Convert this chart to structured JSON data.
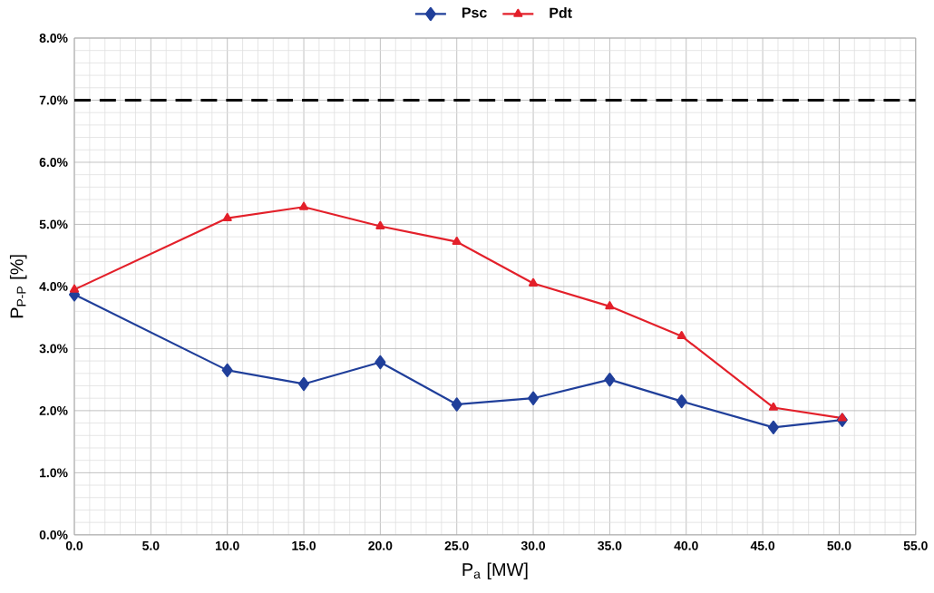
{
  "chart_data": {
    "type": "line",
    "xlabel": "P$_{a}$ [MW]",
    "ylabel": "P$_{P-P}$ [%]",
    "xlim": [
      0,
      55
    ],
    "ylim": [
      0,
      8
    ],
    "xticks": [
      {
        "value": 0,
        "label": "0.0"
      },
      {
        "value": 5,
        "label": "5.0"
      },
      {
        "value": 10,
        "label": "10.0"
      },
      {
        "value": 15,
        "label": "15.0"
      },
      {
        "value": 20,
        "label": "20.0"
      },
      {
        "value": 25,
        "label": "25.0"
      },
      {
        "value": 30,
        "label": "30.0"
      },
      {
        "value": 35,
        "label": "35.0"
      },
      {
        "value": 40,
        "label": "40.0"
      },
      {
        "value": 45,
        "label": "45.0"
      },
      {
        "value": 50,
        "label": "50.0"
      },
      {
        "value": 55,
        "label": "55.0"
      }
    ],
    "yticks": [
      {
        "value": 0,
        "label": "0.0%"
      },
      {
        "value": 1,
        "label": "1.0%"
      },
      {
        "value": 2,
        "label": "2.0%"
      },
      {
        "value": 3,
        "label": "3.0%"
      },
      {
        "value": 4,
        "label": "4.0%"
      },
      {
        "value": 5,
        "label": "5.0%"
      },
      {
        "value": 6,
        "label": "6.0%"
      },
      {
        "value": 7,
        "label": "7.0%"
      },
      {
        "value": 8,
        "label": "8.0%"
      }
    ],
    "grid": true,
    "legend": "top",
    "line_style": "solid",
    "ref_lines": [
      {
        "axis": "y",
        "value": 7,
        "color": "#000000",
        "line_style": "dashed"
      }
    ],
    "series": [
      {
        "name": "Psc",
        "color": "#203f9a",
        "marker": "diamond",
        "x": [
          0,
          10,
          15,
          20,
          25,
          30,
          35,
          39.7,
          45.7,
          50.2
        ],
        "values": [
          3.87,
          2.65,
          2.43,
          2.78,
          2.1,
          2.2,
          2.5,
          2.15,
          1.73,
          1.85
        ]
      },
      {
        "name": "Pdt",
        "color": "#e3202a",
        "marker": "triangle",
        "x": [
          0,
          10,
          15,
          20,
          25,
          30,
          35,
          39.7,
          45.7,
          50.2
        ],
        "values": [
          3.95,
          5.1,
          5.28,
          4.97,
          4.72,
          4.05,
          3.68,
          3.2,
          2.05,
          1.88
        ]
      }
    ]
  }
}
